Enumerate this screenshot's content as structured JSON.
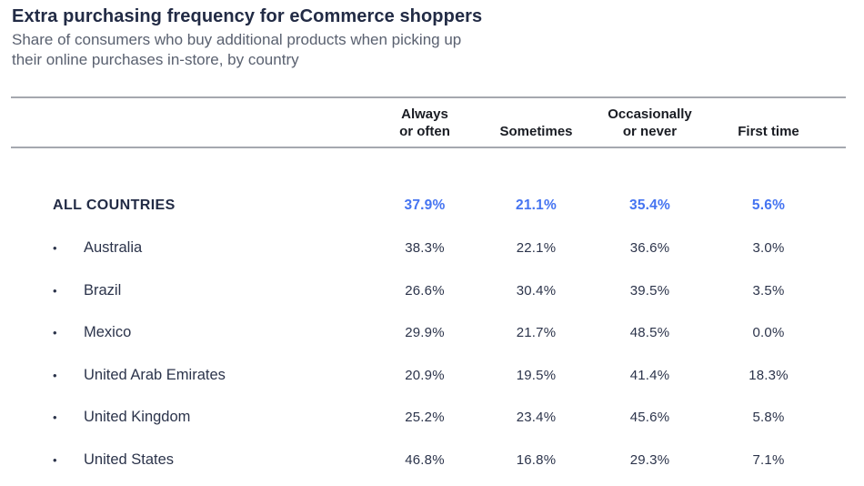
{
  "header": {
    "title": "Extra purchasing frequency for eCommerce shoppers",
    "subtitle_line1": "Share of consumers who buy additional products when picking up",
    "subtitle_line2": "their online purchases in-store, by country"
  },
  "colors": {
    "accent_blue": "#4574f1",
    "title_navy": "#222b45",
    "body_navy": "#2c344b",
    "subtitle_gray": "#5a6170",
    "rule_gray": "#a5a8af",
    "header_dark": "#191c23"
  },
  "table": {
    "bullet": "•",
    "columns": [
      {
        "line1": "Always",
        "line2": "or often"
      },
      {
        "line1": "Sometimes",
        "line2": ""
      },
      {
        "line1": "Occasionally",
        "line2": "or never"
      },
      {
        "line1": "First time",
        "line2": ""
      }
    ],
    "rows": [
      {
        "label": "ALL COUNTRIES",
        "values": [
          "37.9%",
          "21.1%",
          "35.4%",
          "5.6%"
        ]
      },
      {
        "label": "Australia",
        "values": [
          "38.3%",
          "22.1%",
          "36.6%",
          "3.0%"
        ]
      },
      {
        "label": "Brazil",
        "values": [
          "26.6%",
          "30.4%",
          "39.5%",
          "3.5%"
        ]
      },
      {
        "label": "Mexico",
        "values": [
          "29.9%",
          "21.7%",
          "48.5%",
          "0.0%"
        ]
      },
      {
        "label": "United Arab Emirates",
        "values": [
          "20.9%",
          "19.5%",
          "41.4%",
          "18.3%"
        ]
      },
      {
        "label": "United Kingdom",
        "values": [
          "25.2%",
          "23.4%",
          "45.6%",
          "5.8%"
        ]
      },
      {
        "label": "United States",
        "values": [
          "46.8%",
          "16.8%",
          "29.3%",
          "7.1%"
        ]
      }
    ]
  },
  "chart_data": {
    "type": "table",
    "title": "Extra purchasing frequency for eCommerce shoppers",
    "subtitle": "Share of consumers who buy additional products when picking up their online purchases in-store, by country",
    "columns": [
      "Always or often",
      "Sometimes",
      "Occasionally or never",
      "First time"
    ],
    "unit": "%",
    "rows": [
      {
        "label": "ALL COUNTRIES",
        "emphasis": true,
        "values": [
          37.9,
          21.1,
          35.4,
          5.6
        ]
      },
      {
        "label": "Australia",
        "emphasis": false,
        "values": [
          38.3,
          22.1,
          36.6,
          3.0
        ]
      },
      {
        "label": "Brazil",
        "emphasis": false,
        "values": [
          26.6,
          30.4,
          39.5,
          3.5
        ]
      },
      {
        "label": "Mexico",
        "emphasis": false,
        "values": [
          29.9,
          21.7,
          48.5,
          0.0
        ]
      },
      {
        "label": "United Arab Emirates",
        "emphasis": false,
        "values": [
          20.9,
          19.5,
          41.4,
          18.3
        ]
      },
      {
        "label": "United Kingdom",
        "emphasis": false,
        "values": [
          25.2,
          23.4,
          45.6,
          5.8
        ]
      },
      {
        "label": "United States",
        "emphasis": false,
        "values": [
          46.8,
          16.8,
          29.3,
          7.1
        ]
      }
    ]
  }
}
